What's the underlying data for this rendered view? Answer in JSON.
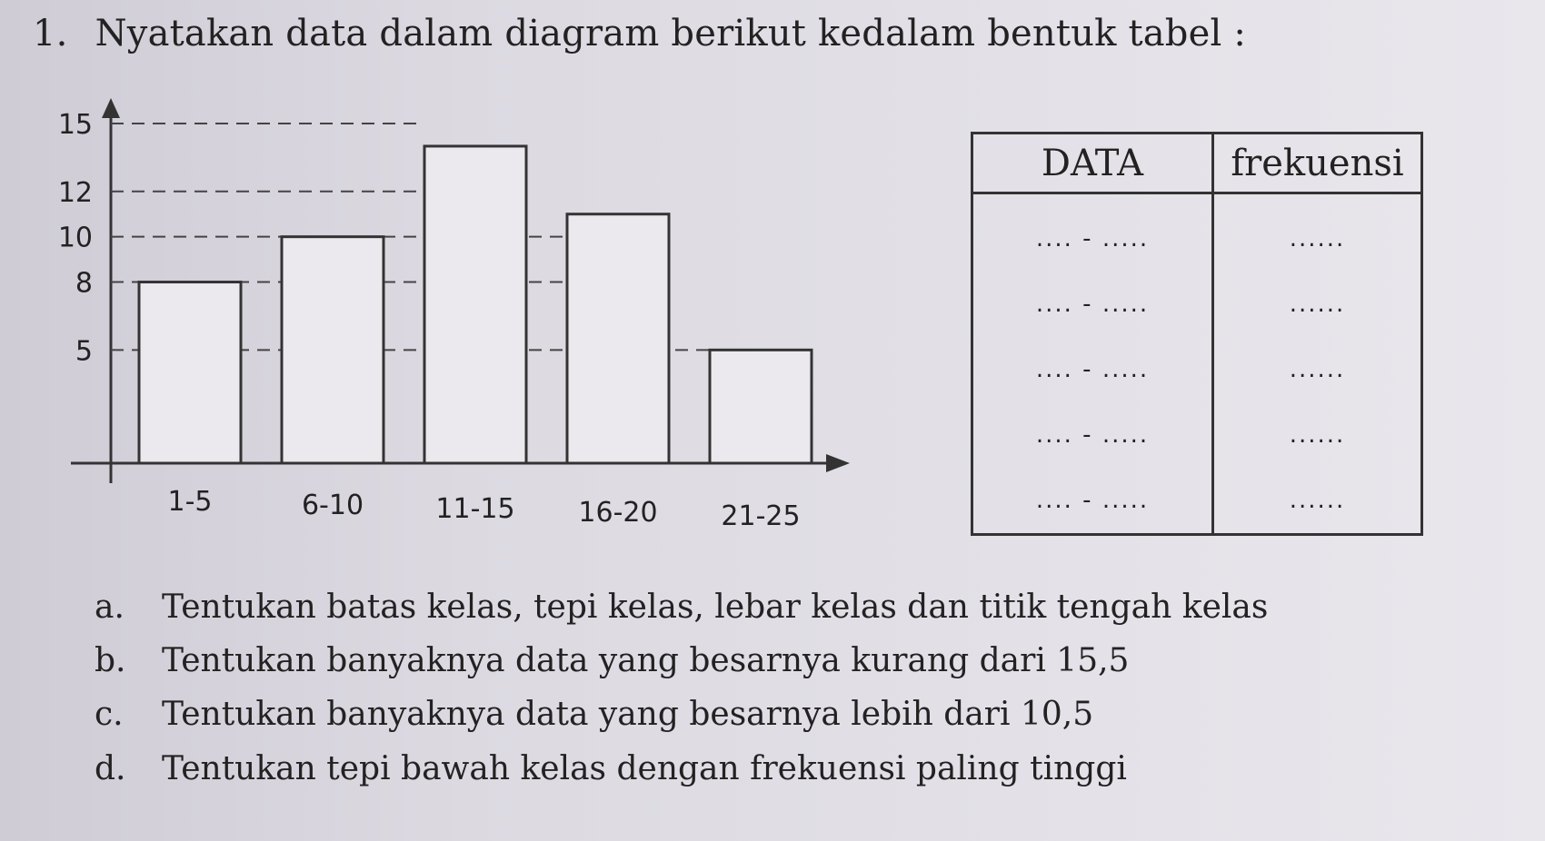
{
  "question": {
    "number": "1.",
    "text": "Nyatakan data dalam diagram berikut kedalam bentuk tabel :"
  },
  "chart_data": {
    "type": "bar",
    "categories": [
      "1-5",
      "6-10",
      "11-15",
      "16-20",
      "21-25"
    ],
    "values": [
      8,
      10,
      14,
      11,
      5
    ],
    "yticks": [
      "15",
      "12",
      "10",
      "8",
      "5"
    ],
    "ytick_values": [
      15,
      12,
      10,
      8,
      5
    ],
    "ylim": [
      0,
      15
    ],
    "grid": "dashed reference lines at tick values"
  },
  "table": {
    "headers": [
      "DATA",
      "frekuensi"
    ],
    "rows": [
      {
        "data": ".... - .....",
        "freq": "......"
      },
      {
        "data": ".... - .....",
        "freq": "......"
      },
      {
        "data": ".... - .....",
        "freq": "......"
      },
      {
        "data": ".... - .....",
        "freq": "......"
      },
      {
        "data": ".... - .....",
        "freq": "......"
      }
    ]
  },
  "subquestions": [
    {
      "label": "a.",
      "text": "Tentukan batas kelas, tepi kelas, lebar kelas dan titik tengah kelas"
    },
    {
      "label": "b.",
      "text": "Tentukan banyaknya data yang besarnya kurang dari 15,5"
    },
    {
      "label": "c.",
      "text": "Tentukan banyaknya data yang besarnya lebih dari 10,5"
    },
    {
      "label": "d.",
      "text": "Tentukan tepi bawah kelas dengan frekuensi paling tinggi"
    }
  ]
}
